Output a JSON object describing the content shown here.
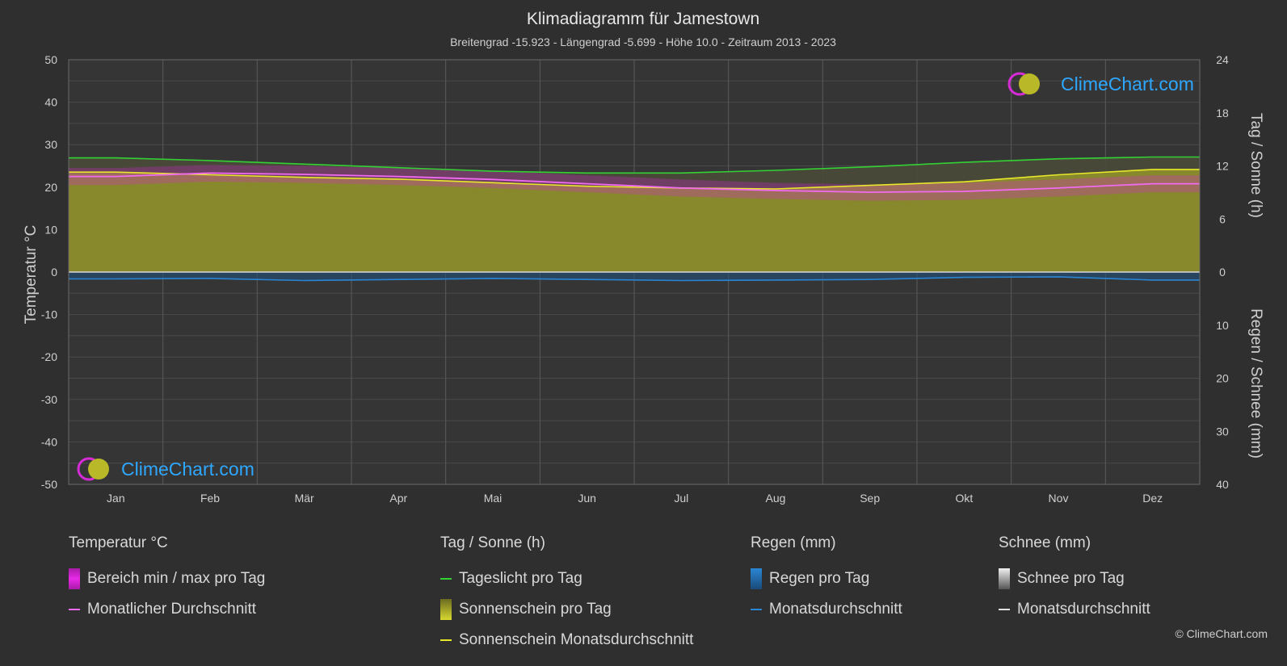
{
  "chart_data": {
    "type": "area",
    "title": "Klimadiagramm für Jamestown",
    "subtitle": "Breitengrad -15.923 - Längengrad -5.699 - Höhe 10.0 - Zeitraum 2013 - 2023",
    "categories": [
      "Jan",
      "Feb",
      "Mär",
      "Apr",
      "Mai",
      "Jun",
      "Jul",
      "Aug",
      "Sep",
      "Okt",
      "Nov",
      "Dez"
    ],
    "y_left": {
      "label": "Temperatur °C",
      "min": -50,
      "max": 50,
      "ticks": [
        "50",
        "40",
        "30",
        "20",
        "10",
        "0",
        "-10",
        "-20",
        "-30",
        "-40",
        "-50"
      ]
    },
    "y_right_top": {
      "label": "Tag / Sonne (h)",
      "min": 0,
      "max": 24,
      "ticks": [
        "24",
        "18",
        "12",
        "6",
        "0"
      ]
    },
    "y_right_bottom": {
      "label": "Regen / Schnee (mm)",
      "min": 0,
      "max": 40,
      "ticks": [
        "0",
        "10",
        "20",
        "30",
        "40"
      ]
    },
    "series": [
      {
        "name": "Tageslicht pro Tag",
        "unit": "h",
        "values": [
          12.9,
          12.6,
          12.2,
          11.8,
          11.4,
          11.2,
          11.2,
          11.5,
          11.9,
          12.4,
          12.8,
          13.0
        ]
      },
      {
        "name": "Sonnenschein Monatsdurchschnitt",
        "unit": "h",
        "values": [
          11.3,
          11.0,
          10.7,
          10.5,
          10.1,
          9.7,
          9.5,
          9.4,
          9.8,
          10.2,
          11.0,
          11.6
        ]
      },
      {
        "name": "Monatlicher Durchschnitt",
        "unit": "°C",
        "values": [
          22.5,
          23.3,
          23.0,
          22.5,
          21.8,
          20.8,
          19.8,
          19.2,
          18.8,
          19.0,
          19.8,
          20.8
        ]
      },
      {
        "name": "Bereich min / max pro Tag",
        "unit": "°C",
        "max": [
          24.5,
          25.2,
          25.0,
          24.5,
          23.8,
          22.8,
          21.8,
          21.0,
          20.6,
          21.0,
          21.8,
          22.8
        ],
        "min": [
          20.5,
          21.3,
          21.0,
          20.5,
          19.8,
          18.8,
          17.8,
          17.2,
          16.8,
          17.0,
          17.8,
          18.8
        ]
      },
      {
        "name": "Regen Monatsdurchschnitt",
        "unit": "mm",
        "values": [
          1.3,
          1.2,
          1.6,
          1.4,
          1.2,
          1.4,
          1.6,
          1.5,
          1.4,
          1.0,
          0.9,
          1.5
        ]
      }
    ],
    "grid": true
  },
  "legend": {
    "temp": {
      "title": "Temperatur °C",
      "items": [
        "Bereich min / max pro Tag",
        "Monatlicher Durchschnitt"
      ]
    },
    "sun": {
      "title": "Tag / Sonne (h)",
      "items": [
        "Tageslicht pro Tag",
        "Sonnenschein pro Tag",
        "Sonnenschein Monatsdurchschnitt"
      ]
    },
    "rain": {
      "title": "Regen (mm)",
      "items": [
        "Regen pro Tag",
        "Monatsdurchschnitt"
      ]
    },
    "snow": {
      "title": "Schnee (mm)",
      "items": [
        "Schnee pro Tag",
        "Monatsdurchschnitt"
      ]
    }
  },
  "colors": {
    "daylight": "#34d134",
    "sunshine_fill": "#8c8c2c",
    "sunshine_avg": "#e8e82a",
    "temp_range": "#d61fd6",
    "temp_avg": "#f06bf0",
    "rain": "#2a86d4",
    "snow": "#e0e0e0"
  },
  "logo": "ClimeChart.com",
  "copyright": "© ClimeChart.com"
}
